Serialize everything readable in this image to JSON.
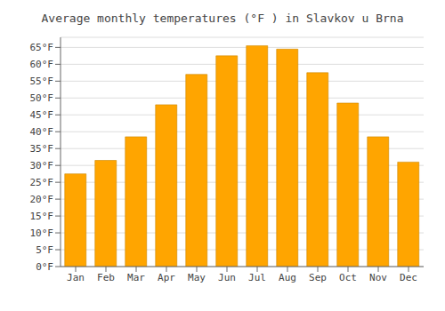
{
  "chart_data": {
    "type": "bar",
    "title": "Average monthly temperatures (°F ) in Slavkov u Brna",
    "categories": [
      "Jan",
      "Feb",
      "Mar",
      "Apr",
      "May",
      "Jun",
      "Jul",
      "Aug",
      "Sep",
      "Oct",
      "Nov",
      "Dec"
    ],
    "values": [
      27.5,
      31.5,
      38.5,
      48.0,
      57.0,
      62.5,
      65.5,
      64.5,
      57.5,
      48.5,
      38.5,
      31.0
    ],
    "color": "#FFA500",
    "ylim": [
      0,
      68
    ],
    "yticks": [
      {
        "value": 0,
        "label": "0°F"
      },
      {
        "value": 5,
        "label": "5°F"
      },
      {
        "value": 10,
        "label": "10°F"
      },
      {
        "value": 15,
        "label": "15°F"
      },
      {
        "value": 20,
        "label": "20°F"
      },
      {
        "value": 25,
        "label": "25°F"
      },
      {
        "value": 30,
        "label": "30°F"
      },
      {
        "value": 35,
        "label": "35°F"
      },
      {
        "value": 40,
        "label": "40°F"
      },
      {
        "value": 45,
        "label": "45°F"
      },
      {
        "value": 50,
        "label": "50°F"
      },
      {
        "value": 55,
        "label": "55°F"
      },
      {
        "value": 60,
        "label": "60°F"
      },
      {
        "value": 65,
        "label": "65°F"
      }
    ],
    "grid": true
  }
}
